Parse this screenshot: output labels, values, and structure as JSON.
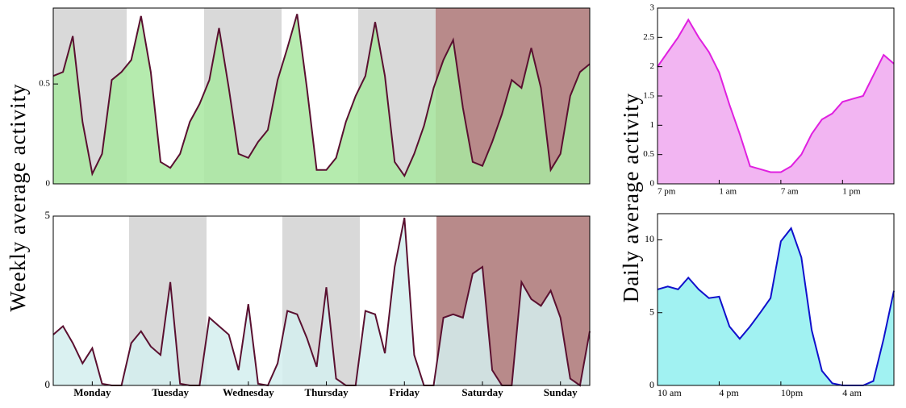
{
  "chart_data": [
    {
      "type": "area",
      "ylabel": "Weekly average activity",
      "color": "#5a1030",
      "fill": "#a8e8a0",
      "values": [
        0.54,
        0.56,
        0.74,
        0.31,
        0.05,
        0.15,
        0.52,
        0.56,
        0.62,
        0.84,
        0.56,
        0.11,
        0.08,
        0.15,
        0.31,
        0.4,
        0.52,
        0.78,
        0.48,
        0.15,
        0.13,
        0.21,
        0.27,
        0.52,
        0.68,
        0.85,
        0.48,
        0.07,
        0.07,
        0.13,
        0.31,
        0.44,
        0.54,
        0.81,
        0.54,
        0.11,
        0.04,
        0.15,
        0.29,
        0.48,
        0.62,
        0.72,
        0.38,
        0.11,
        0.09,
        0.21,
        0.35,
        0.52,
        0.48,
        0.68,
        0.48,
        0.07,
        0.15,
        0.44,
        0.56,
        0.6
      ],
      "ylim": [
        0,
        0.88
      ],
      "yticks": [
        0,
        0.5
      ]
    },
    {
      "type": "area",
      "color": "#5a1030",
      "fill": "#d4eeee",
      "categories": [
        null,
        null,
        null,
        null,
        "Monday",
        null,
        null,
        null,
        null,
        null,
        null,
        null,
        "Tuesday",
        null,
        null,
        null,
        null,
        null,
        null,
        null,
        "Wednesday",
        null,
        null,
        null,
        null,
        null,
        null,
        null,
        "Thursday",
        null,
        null,
        null,
        null,
        null,
        null,
        null,
        "Friday",
        null,
        null,
        null,
        null,
        null,
        null,
        null,
        "Saturday",
        null,
        null,
        null,
        null,
        null,
        null,
        null,
        "Sunday",
        null,
        null,
        null
      ],
      "values": [
        1.5,
        1.75,
        1.25,
        0.65,
        1.1,
        0.05,
        0,
        0,
        1.25,
        1.6,
        1.15,
        0.9,
        3.05,
        0.05,
        0,
        0,
        2.0,
        1.75,
        1.5,
        0.45,
        2.4,
        0.05,
        0,
        0.65,
        2.2,
        2.1,
        1.4,
        0.55,
        2.9,
        0.2,
        0,
        0,
        2.2,
        2.1,
        0.95,
        3.5,
        4.95,
        0.9,
        0,
        0,
        2.0,
        2.1,
        2.0,
        3.3,
        3.5,
        0.45,
        0,
        0,
        3.05,
        2.55,
        2.35,
        2.8,
        2.0,
        0.2,
        0,
        1.6
      ],
      "ylim": [
        0,
        5
      ],
      "yticks": [
        0,
        5
      ]
    },
    {
      "type": "area",
      "ylabel": "Daily average activity",
      "color": "#e020e0",
      "fill": "#f0a8f0",
      "categories": [
        "7 pm",
        null,
        null,
        null,
        null,
        null,
        "1 am",
        null,
        null,
        null,
        null,
        null,
        "7 am",
        null,
        null,
        null,
        null,
        null,
        "1 pm",
        null,
        null,
        null,
        null,
        null
      ],
      "values": [
        2.0,
        2.25,
        2.5,
        2.8,
        2.5,
        2.25,
        1.9,
        1.35,
        0.85,
        0.3,
        0.25,
        0.2,
        0.2,
        0.3,
        0.5,
        0.85,
        1.1,
        1.2,
        1.4,
        1.45,
        1.5,
        1.85,
        2.2,
        2.05
      ],
      "ylim": [
        0,
        3
      ],
      "yticks": [
        0,
        0.5,
        1,
        1.5,
        2,
        2.5,
        3
      ]
    },
    {
      "type": "area",
      "color": "#1010cc",
      "fill": "#90f0f0",
      "categories": [
        "10 am",
        null,
        null,
        null,
        null,
        null,
        "4 pm",
        null,
        null,
        null,
        null,
        null,
        "10pm",
        null,
        null,
        null,
        null,
        null,
        "4 am",
        null,
        null,
        null,
        null,
        null
      ],
      "values": [
        6.6,
        6.8,
        6.6,
        7.4,
        6.6,
        6.0,
        6.1,
        4.05,
        3.2,
        4.05,
        5.0,
        6.0,
        9.9,
        10.8,
        8.8,
        3.8,
        1.0,
        0.15,
        0,
        0,
        0,
        0.3,
        3.2,
        6.5
      ],
      "ylim": [
        0,
        11.8
      ],
      "yticks": [
        0,
        5,
        10
      ]
    }
  ]
}
